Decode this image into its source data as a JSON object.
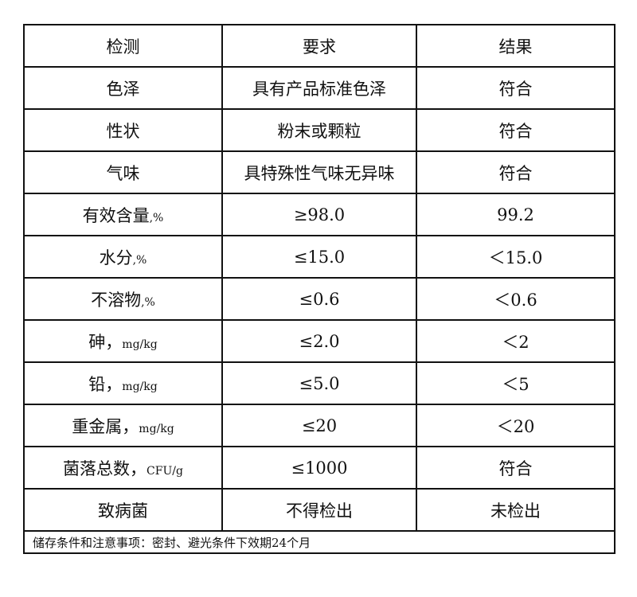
{
  "headers": [
    "检测",
    "要求",
    "结果"
  ],
  "rows": [
    {
      "item": "色泽",
      "unit": "",
      "requirement": "具有产品标准色泽",
      "result": "符合"
    },
    {
      "item": "性状",
      "unit": "",
      "requirement": "粉末或颗粒",
      "result": "符合"
    },
    {
      "item": "气味",
      "unit": "",
      "requirement": "具特殊性气味无异味",
      "result": "符合"
    },
    {
      "item": "有效含量",
      "unit": ",%",
      "requirement": "≥98.0",
      "result": "99.2"
    },
    {
      "item": "水分",
      "unit": ",%",
      "requirement": "≤15.0",
      "result": "＜15.0"
    },
    {
      "item": "不溶物",
      "unit": ",%",
      "requirement": "≤0.6",
      "result": "＜0.6"
    },
    {
      "item": "砷，",
      "unit": "mg/kg",
      "requirement": "≤2.0",
      "result": "＜2"
    },
    {
      "item": "铅，",
      "unit": "mg/kg",
      "requirement": "≤5.0",
      "result": "＜5"
    },
    {
      "item": "重金属，",
      "unit": "mg/kg",
      "requirement": "≤20",
      "result": "＜20"
    },
    {
      "item": "菌落总数，",
      "unit": "CFU/g",
      "requirement": "≤1000",
      "result": "符合"
    },
    {
      "item": "致病菌",
      "unit": "",
      "requirement": "不得检出",
      "result": "未检出"
    }
  ],
  "footer": "储存条件和注意事项：密封、避光条件下效期24个月"
}
